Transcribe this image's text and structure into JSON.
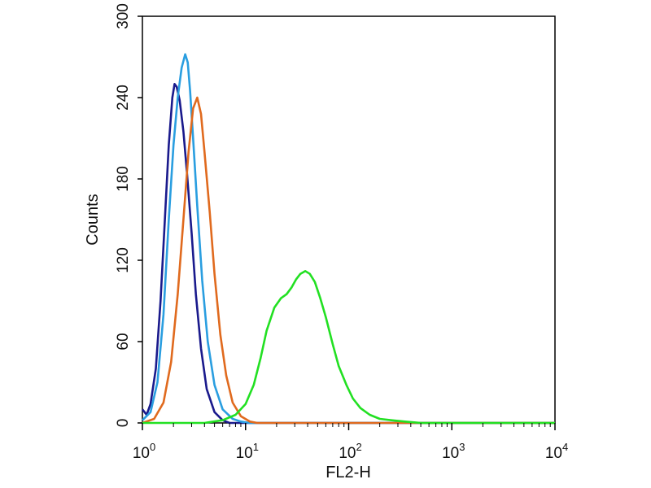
{
  "chart_data": {
    "type": "line",
    "title": "",
    "xlabel": "FL2-H",
    "ylabel": "Counts",
    "x_scale": "log",
    "xlim": [
      1,
      10000
    ],
    "ylim": [
      0,
      300
    ],
    "x_ticks": [
      {
        "base": "10",
        "exp": "0",
        "value": 1
      },
      {
        "base": "10",
        "exp": "1",
        "value": 10
      },
      {
        "base": "10",
        "exp": "2",
        "value": 100
      },
      {
        "base": "10",
        "exp": "3",
        "value": 1000
      },
      {
        "base": "10",
        "exp": "4",
        "value": 10000
      }
    ],
    "y_ticks": [
      "0",
      "60",
      "120",
      "180",
      "240",
      "300"
    ],
    "grid": false,
    "legend": "none",
    "series": [
      {
        "color": "#1a1a8c",
        "points": [
          [
            1.0,
            10
          ],
          [
            1.1,
            6
          ],
          [
            1.2,
            14
          ],
          [
            1.35,
            40
          ],
          [
            1.5,
            90
          ],
          [
            1.65,
            150
          ],
          [
            1.8,
            205
          ],
          [
            1.95,
            240
          ],
          [
            2.05,
            250
          ],
          [
            2.15,
            248
          ],
          [
            2.3,
            238
          ],
          [
            2.5,
            215
          ],
          [
            2.7,
            185
          ],
          [
            3.0,
            140
          ],
          [
            3.3,
            95
          ],
          [
            3.7,
            55
          ],
          [
            4.2,
            25
          ],
          [
            5.0,
            8
          ],
          [
            6.0,
            2
          ],
          [
            7.0,
            0
          ],
          [
            10000,
            0
          ]
        ]
      },
      {
        "color": "#2a9ee0",
        "points": [
          [
            1.0,
            2
          ],
          [
            1.2,
            8
          ],
          [
            1.4,
            30
          ],
          [
            1.6,
            80
          ],
          [
            1.8,
            150
          ],
          [
            2.0,
            205
          ],
          [
            2.2,
            240
          ],
          [
            2.4,
            262
          ],
          [
            2.6,
            272
          ],
          [
            2.75,
            266
          ],
          [
            2.9,
            245
          ],
          [
            3.1,
            210
          ],
          [
            3.4,
            160
          ],
          [
            3.8,
            105
          ],
          [
            4.3,
            60
          ],
          [
            5.0,
            28
          ],
          [
            6.0,
            10
          ],
          [
            7.5,
            3
          ],
          [
            9.0,
            1
          ],
          [
            11,
            0
          ],
          [
            10000,
            0
          ]
        ]
      },
      {
        "color": "#e06a1e",
        "points": [
          [
            1.0,
            0
          ],
          [
            1.3,
            3
          ],
          [
            1.6,
            15
          ],
          [
            1.9,
            45
          ],
          [
            2.2,
            95
          ],
          [
            2.5,
            150
          ],
          [
            2.8,
            200
          ],
          [
            3.1,
            232
          ],
          [
            3.4,
            240
          ],
          [
            3.7,
            228
          ],
          [
            4.0,
            200
          ],
          [
            4.5,
            155
          ],
          [
            5.0,
            110
          ],
          [
            5.7,
            65
          ],
          [
            6.5,
            35
          ],
          [
            7.5,
            15
          ],
          [
            9.0,
            5
          ],
          [
            11,
            1
          ],
          [
            13,
            0
          ],
          [
            10000,
            0
          ]
        ]
      },
      {
        "color": "#22e022",
        "points": [
          [
            1.0,
            0
          ],
          [
            4.0,
            0
          ],
          [
            6.0,
            2
          ],
          [
            8.0,
            6
          ],
          [
            10,
            14
          ],
          [
            12,
            28
          ],
          [
            14,
            48
          ],
          [
            16,
            68
          ],
          [
            19,
            85
          ],
          [
            22,
            92
          ],
          [
            25,
            95
          ],
          [
            28,
            100
          ],
          [
            31,
            106
          ],
          [
            34,
            110
          ],
          [
            38,
            112
          ],
          [
            42,
            110
          ],
          [
            47,
            104
          ],
          [
            53,
            92
          ],
          [
            60,
            78
          ],
          [
            70,
            58
          ],
          [
            80,
            42
          ],
          [
            95,
            28
          ],
          [
            110,
            18
          ],
          [
            130,
            11
          ],
          [
            160,
            6
          ],
          [
            200,
            3
          ],
          [
            260,
            2
          ],
          [
            350,
            1
          ],
          [
            500,
            0
          ],
          [
            10000,
            0
          ]
        ]
      }
    ]
  }
}
